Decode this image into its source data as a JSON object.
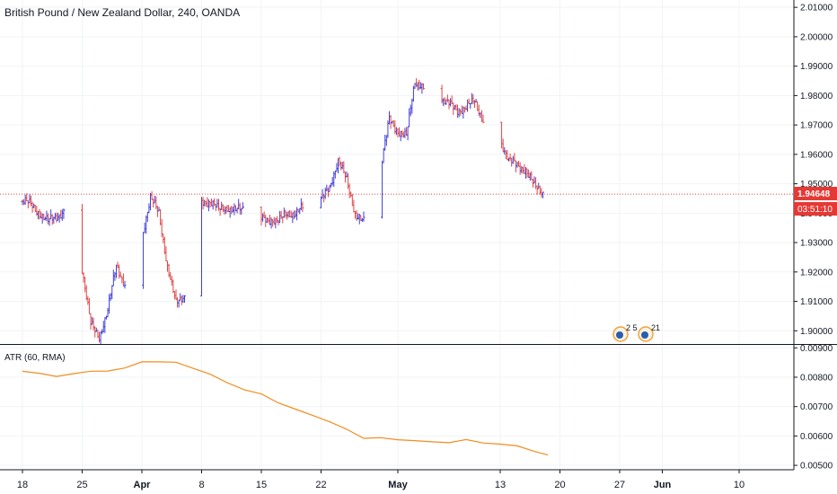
{
  "header": {
    "title": "British Pound / New Zealand Dollar, 240, OANDA"
  },
  "price_tag": {
    "value": "1.94648",
    "countdown": "03:51:10"
  },
  "indicator": {
    "label": "ATR (60, RMA)"
  },
  "events": [
    {
      "icon": "earnings-event-icon",
      "text": "2 5"
    },
    {
      "icon": "earnings-event-icon",
      "text": "21"
    }
  ],
  "colors": {
    "up": "#3f3fd9",
    "down": "#e04545",
    "atr": "#f28c1e",
    "price_line": "#e04545",
    "grid": "#f1f3f6",
    "axis": "#131722",
    "tag_bg": "#e53935"
  },
  "chart_data": [
    {
      "type": "candlestick",
      "title": "British Pound / New Zealand Dollar, 240, OANDA",
      "y_ticks": [
        "1.90000",
        "1.91000",
        "1.92000",
        "1.93000",
        "1.94000",
        "1.95000",
        "1.96000",
        "1.97000",
        "1.98000",
        "1.99000",
        "2.00000",
        "2.01000"
      ],
      "ylim": [
        1.8955,
        2.0125
      ],
      "x_ticks": [
        {
          "label": "18",
          "day": 0
        },
        {
          "label": "25",
          "day": 7
        },
        {
          "label": "Apr",
          "day": 14,
          "bold": true
        },
        {
          "label": "8",
          "day": 21
        },
        {
          "label": "15",
          "day": 28
        },
        {
          "label": "22",
          "day": 35
        },
        {
          "label": "May",
          "day": 44,
          "bold": true
        },
        {
          "label": "13",
          "day": 56
        },
        {
          "label": "20",
          "day": 63
        },
        {
          "label": "27",
          "day": 70
        },
        {
          "label": "Jun",
          "day": 75,
          "bold": true
        },
        {
          "label": "10",
          "day": 84
        }
      ],
      "last_price": 1.94648,
      "anchors": [
        [
          0,
          1.944
        ],
        [
          1,
          1.943
        ],
        [
          3,
          1.937
        ],
        [
          5,
          1.941
        ],
        [
          6,
          1.937
        ],
        [
          7,
          1.921
        ],
        [
          8,
          1.902
        ],
        [
          9,
          1.898
        ],
        [
          10,
          1.907
        ],
        [
          11,
          1.922
        ],
        [
          12,
          1.916
        ],
        [
          13,
          1.91
        ],
        [
          14,
          1.932
        ],
        [
          15,
          1.945
        ],
        [
          16,
          1.94
        ],
        [
          17,
          1.922
        ],
        [
          18,
          1.909
        ],
        [
          19,
          1.912
        ],
        [
          20,
          1.939
        ],
        [
          21,
          1.944
        ],
        [
          22,
          1.944
        ],
        [
          23,
          1.941
        ],
        [
          24,
          1.942
        ],
        [
          25,
          1.941
        ],
        [
          26,
          1.941
        ],
        [
          27,
          1.943
        ],
        [
          28,
          1.938
        ],
        [
          29,
          1.938
        ],
        [
          30,
          1.937
        ],
        [
          31,
          1.94
        ],
        [
          32,
          1.94
        ],
        [
          33,
          1.942
        ],
        [
          34,
          1.943
        ],
        [
          35,
          1.944
        ],
        [
          36,
          1.949
        ],
        [
          37,
          1.958
        ],
        [
          38,
          1.951
        ],
        [
          39,
          1.94
        ],
        [
          40,
          1.937
        ],
        [
          41,
          1.938
        ],
        [
          42,
          1.955
        ],
        [
          43,
          1.972
        ],
        [
          44,
          1.968
        ],
        [
          45,
          1.966
        ],
        [
          46,
          1.985
        ],
        [
          47,
          1.983
        ],
        [
          48,
          1.985
        ],
        [
          49,
          1.979
        ],
        [
          50,
          1.977
        ],
        [
          51,
          1.975
        ],
        [
          52,
          1.976
        ],
        [
          53,
          1.978
        ],
        [
          54,
          1.972
        ],
        [
          55,
          1.969
        ],
        [
          56,
          1.965
        ],
        [
          57,
          1.958
        ],
        [
          58,
          1.956
        ],
        [
          59,
          1.955
        ],
        [
          60,
          1.949
        ],
        [
          61,
          1.947
        ],
        [
          61.6,
          1.9465
        ]
      ]
    },
    {
      "type": "line",
      "title": "ATR (60, RMA)",
      "y_ticks": [
        "0.00500",
        "0.00600",
        "0.00700",
        "0.00800",
        "0.00900"
      ],
      "ylim": [
        0.00485,
        0.0091
      ],
      "x": [
        0,
        2,
        4,
        6,
        8,
        10,
        12,
        14,
        16,
        18,
        20,
        22,
        24,
        26,
        28,
        30,
        32,
        34,
        36,
        38,
        40,
        42,
        44,
        46,
        48,
        50,
        52,
        54,
        56,
        58,
        60,
        61.6
      ],
      "values": [
        0.0082,
        0.00815,
        0.008,
        0.00815,
        0.00818,
        0.00822,
        0.00832,
        0.0085,
        0.00855,
        0.00848,
        0.00832,
        0.0081,
        0.0078,
        0.0076,
        0.0074,
        0.00715,
        0.0069,
        0.0067,
        0.0065,
        0.0062,
        0.00595,
        0.00592,
        0.00588,
        0.00585,
        0.00578,
        0.0058,
        0.00585,
        0.00578,
        0.00572,
        0.00565,
        0.0055,
        0.00535
      ]
    }
  ]
}
